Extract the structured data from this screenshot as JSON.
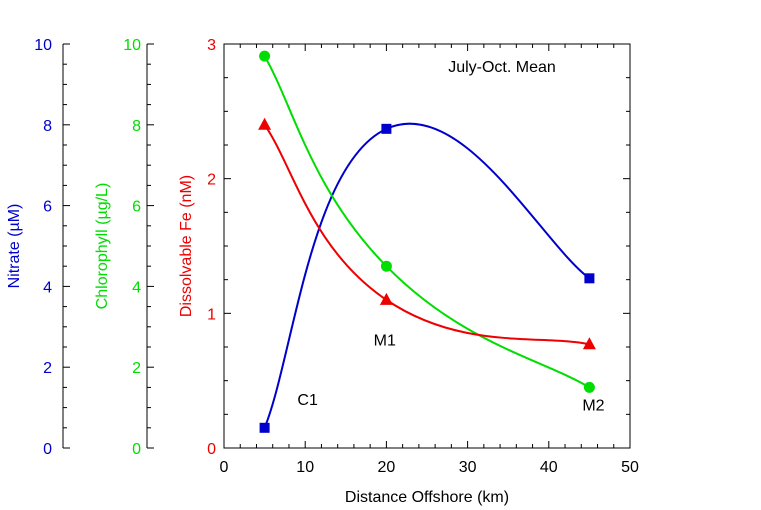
{
  "chart_data": {
    "type": "line",
    "title": "July-Oct. Mean",
    "xlabel": "Distance Offshore (km)",
    "xlim": [
      0,
      50
    ],
    "xticks": [
      0,
      10,
      20,
      30,
      40,
      50
    ],
    "y_axes": [
      {
        "key": "nitrate",
        "label": "Nitrate (µM)",
        "color": "#0000cc",
        "lim": [
          0,
          10
        ],
        "ticks": [
          0,
          2,
          4,
          6,
          8,
          10
        ],
        "minor_step": 0.5
      },
      {
        "key": "chl",
        "label": "Chlorophyll (µg/L)",
        "color": "#00dd00",
        "lim": [
          0,
          10
        ],
        "ticks": [
          0,
          2,
          4,
          6,
          8,
          10
        ],
        "minor_step": 0.5
      },
      {
        "key": "fe",
        "label": "Dissolvable Fe (nM)",
        "color": "#ee0000",
        "lim": [
          0,
          3
        ],
        "ticks": [
          0,
          1,
          2,
          3
        ],
        "minor_step": 0.25
      }
    ],
    "series": [
      {
        "axis": "nitrate",
        "marker": "square",
        "color": "#0000cc",
        "x": [
          5,
          20,
          45
        ],
        "y": [
          0.5,
          7.9,
          4.2
        ]
      },
      {
        "axis": "chl",
        "marker": "circle",
        "color": "#00dd00",
        "x": [
          5,
          20,
          45
        ],
        "y": [
          9.7,
          4.5,
          1.5
        ]
      },
      {
        "axis": "fe",
        "marker": "triangle",
        "color": "#ee0000",
        "x": [
          5,
          20,
          45
        ],
        "y": [
          2.4,
          1.1,
          0.77
        ]
      }
    ],
    "annotations": [
      {
        "text": "C1",
        "x": 10.3,
        "y_fe": 0.32
      },
      {
        "text": "M1",
        "x": 19.8,
        "y_fe": 0.76
      },
      {
        "text": "M2",
        "x": 45.5,
        "y_fe": 0.28
      }
    ],
    "grid": false,
    "legend": "none"
  }
}
